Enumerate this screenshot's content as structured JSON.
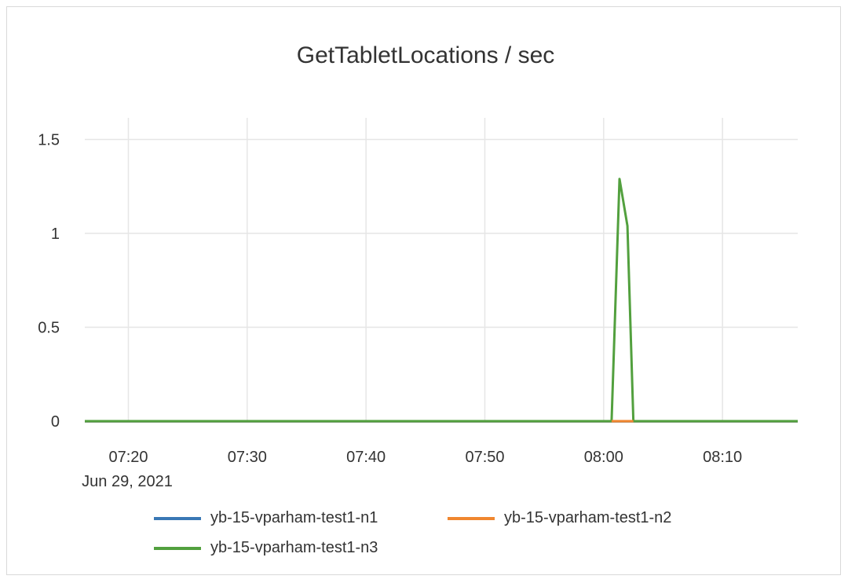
{
  "chart_data": {
    "type": "line",
    "title": "GetTabletLocations / sec",
    "xlabel": "",
    "ylabel": "",
    "x_range": [
      "07:16:20",
      "08:16:20"
    ],
    "x_ticks": [
      "07:20",
      "07:30",
      "07:40",
      "07:50",
      "08:00",
      "08:10"
    ],
    "x_date_label": "Jun 29, 2021",
    "ylim": [
      0,
      1.6
    ],
    "y_ticks": [
      "0",
      "0.5",
      "1",
      "1.5"
    ],
    "grid": true,
    "legend_position": "bottom",
    "series": [
      {
        "name": "yb-15-vparham-test1-n1",
        "color": "#3a78b5",
        "points": [
          [
            "07:16:20",
            0
          ],
          [
            "08:00:40",
            0
          ],
          [
            "08:01:20",
            0
          ],
          [
            "08:02:00",
            0
          ],
          [
            "08:02:30",
            0
          ],
          [
            "08:16:20",
            0
          ]
        ]
      },
      {
        "name": "yb-15-vparham-test1-n2",
        "color": "#f0862f",
        "points": [
          [
            "07:16:20",
            0
          ],
          [
            "08:00:40",
            0
          ],
          [
            "08:01:20",
            0
          ],
          [
            "08:02:00",
            0
          ],
          [
            "08:02:30",
            0
          ],
          [
            "08:16:20",
            0
          ]
        ]
      },
      {
        "name": "yb-15-vparham-test1-n3",
        "color": "#52a03e",
        "points": [
          [
            "07:16:20",
            0
          ],
          [
            "08:00:40",
            0
          ],
          [
            "08:01:20",
            1.29
          ],
          [
            "08:02:00",
            1.04
          ],
          [
            "08:02:30",
            0
          ],
          [
            "08:16:20",
            0
          ]
        ]
      }
    ]
  }
}
